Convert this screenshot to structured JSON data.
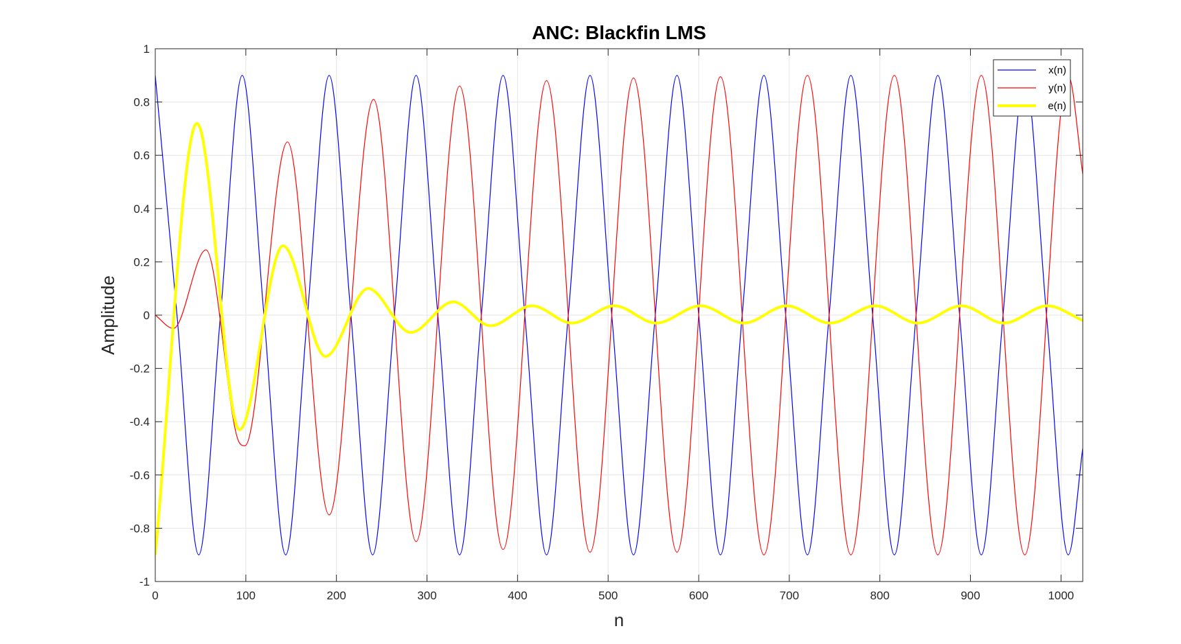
{
  "chart_data": {
    "type": "line",
    "title": "ANC: Blackfin LMS",
    "xlabel": "n",
    "ylabel": "Amplitude",
    "xlim": [
      0,
      1024
    ],
    "ylim": [
      -1,
      1
    ],
    "xticks": [
      0,
      100,
      200,
      300,
      400,
      500,
      600,
      700,
      800,
      900,
      1000
    ],
    "yticks": [
      -1,
      -0.8,
      -0.6,
      -0.4,
      -0.2,
      0,
      0.2,
      0.4,
      0.6,
      0.8,
      1
    ],
    "xtick_labels": [
      "0",
      "100",
      "200",
      "300",
      "400",
      "500",
      "600",
      "700",
      "800",
      "900",
      "1000"
    ],
    "ytick_labels": [
      "-1",
      "-0.8",
      "-0.6",
      "-0.4",
      "-0.2",
      "0",
      "0.2",
      "0.4",
      "0.6",
      "0.8",
      "1"
    ],
    "grid": true,
    "legend_position": "top-right",
    "series": [
      {
        "name": "x(n)",
        "color": "#0000ff",
        "line_width": "thin",
        "x": [
          0,
          24,
          48,
          72,
          96,
          120,
          144,
          168,
          192,
          216,
          240,
          264,
          288,
          312,
          336,
          360,
          384,
          408,
          432,
          456,
          480,
          504,
          528,
          552,
          576,
          600,
          624,
          648,
          672,
          696,
          720,
          744,
          768,
          792,
          816,
          840,
          864,
          888,
          912,
          936,
          960,
          984,
          1008,
          1024
        ],
        "values": [
          0.9,
          0,
          -0.9,
          0,
          0.9,
          0,
          -0.9,
          0,
          0.9,
          0,
          -0.9,
          0,
          0.9,
          0,
          -0.9,
          0,
          0.9,
          0,
          -0.9,
          0,
          0.9,
          0,
          -0.9,
          0,
          0.9,
          0,
          -0.9,
          0,
          0.9,
          0,
          -0.9,
          0,
          0.9,
          0,
          -0.9,
          0,
          0.9,
          0,
          -0.9,
          0,
          0.9,
          0,
          -0.9,
          -0.5
        ]
      },
      {
        "name": "y(n)",
        "color": "#ff0000",
        "line_width": "thin",
        "x": [
          0,
          20,
          56,
          93,
          99,
          146,
          192,
          241,
          288,
          336,
          384,
          432,
          480,
          528,
          576,
          624,
          672,
          720,
          768,
          816,
          864,
          912,
          960,
          1008,
          1024
        ],
        "values": [
          0,
          -0.05,
          0.245,
          -0.48,
          -0.49,
          0.65,
          -0.75,
          0.81,
          -0.85,
          0.86,
          -0.88,
          0.88,
          -0.89,
          0.89,
          -0.89,
          0.895,
          -0.9,
          0.9,
          -0.9,
          0.9,
          -0.9,
          0.9,
          -0.9,
          0.9,
          0.53
        ]
      },
      {
        "name": "e(n)",
        "color": "#ffff00",
        "line_width": "thick",
        "x": [
          0,
          46,
          93,
          141,
          188,
          235,
          282,
          329,
          370,
          416,
          460,
          507,
          553,
          602,
          650,
          697,
          745,
          795,
          842,
          890,
          937,
          985,
          1024
        ],
        "values": [
          -0.9,
          0.72,
          -0.43,
          0.26,
          -0.155,
          0.1,
          -0.065,
          0.05,
          -0.04,
          0.035,
          -0.03,
          0.035,
          -0.03,
          0.035,
          -0.03,
          0.035,
          -0.03,
          0.035,
          -0.03,
          0.035,
          -0.03,
          0.035,
          -0.02
        ]
      }
    ]
  }
}
